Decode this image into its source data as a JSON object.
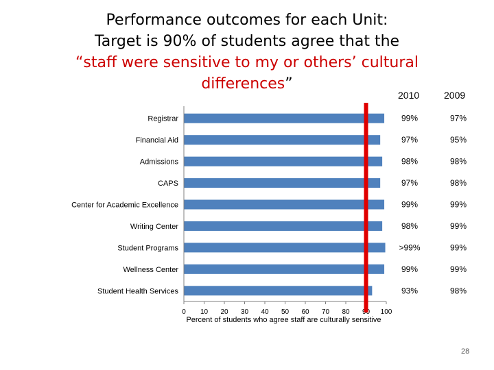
{
  "title": {
    "line1": "Performance outcomes for each Unit:",
    "line2": "Target is 90% of students agree that the",
    "line3": "“staff were sensitive to my or others’ cultural",
    "line4_red": "differences",
    "line4_quote": "”"
  },
  "columns": {
    "year1": "2010",
    "year2": "2009"
  },
  "page_number": "28",
  "colors": {
    "bar": "#4f81bd",
    "target": "#e00000",
    "axis": "#7f7f7f"
  },
  "chart_data": {
    "type": "bar",
    "orientation": "horizontal",
    "categories": [
      "Registrar",
      "Financial Aid",
      "Admissions",
      "CAPS",
      "Center for Academic Excellence",
      "Writing Center",
      "Student Programs",
      "Wellness Center",
      "Student Health Services"
    ],
    "series": [
      {
        "values": [
          99,
          97,
          98,
          97,
          99,
          98,
          99.5,
          99,
          93
        ]
      }
    ],
    "xlabel": "Percent of students who agree staff are culturally sensitive",
    "xlim": [
      0,
      100
    ],
    "xticks": [
      "0",
      "10",
      "20",
      "30",
      "40",
      "50",
      "60",
      "70",
      "80",
      "90",
      "100"
    ],
    "target": 90,
    "labels_2010": [
      "99%",
      "97%",
      "98%",
      "97%",
      "99%",
      "98%",
      ">99%",
      "99%",
      "93%"
    ],
    "labels_2009": [
      "97%",
      "95%",
      "98%",
      "98%",
      "99%",
      "99%",
      "99%",
      "99%",
      "98%"
    ],
    "grid": false,
    "legend": "none"
  }
}
